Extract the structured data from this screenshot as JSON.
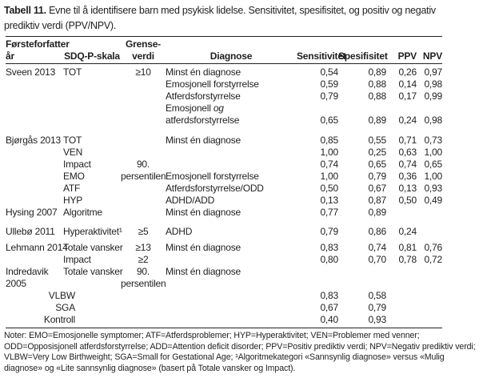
{
  "caption": {
    "prefix": "Tabell 11.",
    "line1": " Evne til å identifisere barn med psykisk lidelse. Sensitivitet, spesifisitet, og positiv og negativ",
    "line2": "prediktiv verdi (PPV/NPV)."
  },
  "table": {
    "header": {
      "col1_line1": "Førsteforfatter",
      "col1_line2": "år",
      "col2": "SDQ-P-skala",
      "col3_line1": "Grense-",
      "col3_line2": "verdi",
      "col4": "Diagnose",
      "col5": "Sensitivitet",
      "col6": "Spesifisitet",
      "col7": "PPV",
      "col8": "NPV"
    },
    "rows": [
      {
        "a": "Sveen 2013",
        "s": "TOT",
        "g": "≥10",
        "d": "Minst én diagnose",
        "se": "0,54",
        "sp": "0,89",
        "pp": "0,26",
        "np": "0,97"
      },
      {
        "d": "Emosjonell forstyrrelse",
        "se": "0,59",
        "sp": "0,88",
        "pp": "0,14",
        "np": "0,98"
      },
      {
        "d": "Atferdsforstyrrelse",
        "se": "0,79",
        "sp": "0,88",
        "pp": "0,17",
        "np": "0,99"
      },
      {
        "d": "Emosjonell *og*"
      },
      {
        "d": "atferdsforstyrrelse",
        "se": "0,65",
        "sp": "0,89",
        "pp": "0,24",
        "np": "0,98"
      },
      {
        "spacer": 10
      },
      {
        "a": "Bjørgås 2013",
        "s": "TOT",
        "d": "Minst én diagnose",
        "se": "0,85",
        "sp": "0,55",
        "pp": "0,71",
        "np": "0,73"
      },
      {
        "s": "VEN",
        "se": "1,00",
        "sp": "0,25",
        "pp": "0,63",
        "np": "1,00"
      },
      {
        "s": "Impact",
        "g": "90.",
        "se": "0,74",
        "sp": "0,65",
        "pp": "0,74",
        "np": "0,65"
      },
      {
        "s": "EMO",
        "g": "persentilen",
        "d": "Emosjonell forstyrrelse",
        "se": "1,00",
        "sp": "0,79",
        "pp": "0,36",
        "np": "1,00"
      },
      {
        "s": "ATF",
        "d": "Atferdsforstyrrelse/ODD",
        "se": "0,50",
        "sp": "0,67",
        "pp": "0,13",
        "np": "0,93"
      },
      {
        "s": "HYP",
        "d": "ADHD/ADD",
        "se": "0,13",
        "sp": "0,87",
        "pp": "0,50",
        "np": "0,49"
      },
      {
        "a": "Hysing 2007",
        "s": "Algoritme",
        "d": "Minst én diagnose",
        "se": "0,77",
        "sp": "0,89"
      },
      {
        "spacer": 9
      },
      {
        "a": "Ullebø 2011",
        "s": "Hyperaktivitet¹",
        "g": "≥5",
        "d": "ADHD",
        "se": "0,79",
        "sp": "0,86",
        "pp": "0,24"
      },
      {
        "spacer": 5
      },
      {
        "a": "Lehmann 2014",
        "s": "Totale vansker",
        "g": "≥13",
        "d": "Minst én diagnose",
        "se": "0,83",
        "sp": "0,74",
        "pp": "0,81",
        "np": "0,76"
      },
      {
        "s": "Impact",
        "g": "≥2",
        "se": "0,80",
        "sp": "0,70",
        "pp": "0,78",
        "np": "0,72"
      },
      {
        "a": "Indredavik",
        "s": "Totale vansker",
        "g": "90.",
        "d": "Minst én diagnose"
      },
      {
        "a": "2005",
        "g": "persentilen"
      },
      {
        "sub": "VLBW",
        "se": "0,83",
        "sp": "0,58"
      },
      {
        "sub": "SGA",
        "se": "0,67",
        "sp": "0,79"
      },
      {
        "sub": "Kontroll",
        "se": "0,40",
        "sp": "0,93"
      }
    ]
  },
  "notes": "Noter: EMO=Emosjonelle symptomer; ATF=Atferdsproblemer; HYP=Hyperaktivitet; VEN=Problemer med venner; ODD=Opposisjonell atferdsforstyrrelse; ADD=Attention deficit disorder; PPV=Positiv prediktiv verdi; NPV=Negativ prediktiv verdi; VLBW=Very Low Birthweight; SGA=Small for Gestational Age; ¹Algoritmekategori «Sannsynlig diagnose» versus «Mulig diagnose» og «Lite sannsynlig diagnose» (basert på Totale vansker og Impact)."
}
